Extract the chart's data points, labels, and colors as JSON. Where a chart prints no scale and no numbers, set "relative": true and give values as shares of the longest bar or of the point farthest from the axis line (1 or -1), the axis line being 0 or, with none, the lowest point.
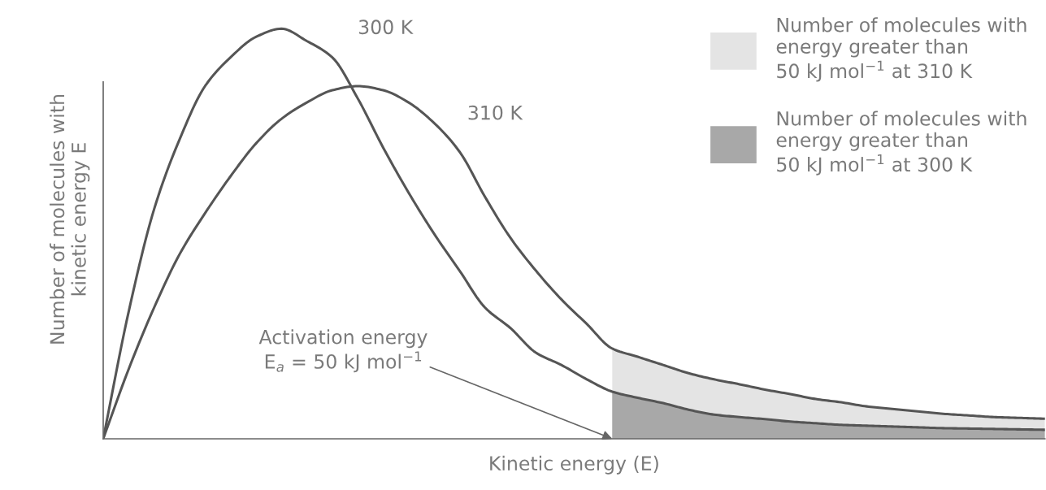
{
  "chart_data": {
    "type": "line",
    "relative": true,
    "xlabel": "Kinetic energy (E)",
    "ylabel": "Number of molecules with\nkinetic energy E",
    "categories": [
      null,
      null,
      null,
      null,
      null,
      null,
      null,
      null,
      null,
      null,
      null,
      null,
      null,
      null,
      null,
      null,
      null,
      null,
      null,
      null,
      null,
      null,
      null,
      null,
      null,
      null,
      null,
      null,
      null,
      null,
      null,
      null,
      null,
      null,
      null,
      null,
      null,
      null
    ],
    "series": [
      {
        "name": "Number of molecules with\nenergy greater than\n50 kJ mol$^{−1}$ at 310 K",
        "type": "area",
        "color": "#e4e4e4",
        "values": [
          null,
          null,
          null,
          null,
          null,
          null,
          null,
          null,
          null,
          null,
          null,
          null,
          null,
          null,
          null,
          null,
          null,
          null,
          null,
          null,
          0.22,
          0.2,
          0.18,
          0.16,
          0.145,
          0.133,
          0.12,
          0.109,
          0.097,
          0.089,
          0.079,
          0.073,
          0.067,
          0.061,
          0.057,
          0.053,
          0.051,
          0.049
        ]
      },
      {
        "name": "Number of molecules with\nenergy greater than\n50 kJ mol$^{−1}$ at 300 K",
        "type": "area",
        "color": "#a8a8a8",
        "values": [
          null,
          null,
          null,
          null,
          null,
          null,
          null,
          null,
          null,
          null,
          null,
          null,
          null,
          null,
          null,
          null,
          null,
          null,
          null,
          null,
          0.115,
          0.1,
          0.087,
          0.071,
          0.059,
          0.053,
          0.048,
          0.042,
          0.038,
          0.034,
          0.032,
          0.03,
          0.028,
          0.026,
          0.025,
          0.024,
          0.023,
          0.022
        ]
      },
      {
        "name": "300 K",
        "color": "#555555",
        "values": [
          0,
          0.31,
          0.56,
          0.73,
          0.86,
          0.93,
          0.98,
          1.0,
          0.97,
          0.93,
          0.83,
          0.71,
          0.6,
          0.5,
          0.41,
          0.32,
          0.27,
          0.21,
          0.18,
          0.145,
          0.115,
          0.1,
          0.087,
          0.071,
          0.059,
          0.053,
          0.048,
          0.042,
          0.038,
          0.034,
          0.032,
          0.03,
          0.028,
          0.026,
          0.025,
          0.024,
          0.023,
          0.022
        ]
      },
      {
        "name": "310 K",
        "color": "#555555",
        "values": [
          0,
          0.17,
          0.32,
          0.45,
          0.55,
          0.64,
          0.72,
          0.78,
          0.82,
          0.85,
          0.86,
          0.85,
          0.82,
          0.77,
          0.7,
          0.59,
          0.49,
          0.41,
          0.34,
          0.28,
          0.22,
          0.2,
          0.18,
          0.16,
          0.145,
          0.133,
          0.12,
          0.109,
          0.097,
          0.089,
          0.079,
          0.073,
          0.067,
          0.061,
          0.057,
          0.053,
          0.051,
          0.049
        ]
      }
    ],
    "annotations": [
      "Activation energy\nE$_{a}$ = 50 kJ mol$^{−1}$"
    ],
    "legend": "top right",
    "marker": "none",
    "line_style": "solid"
  }
}
